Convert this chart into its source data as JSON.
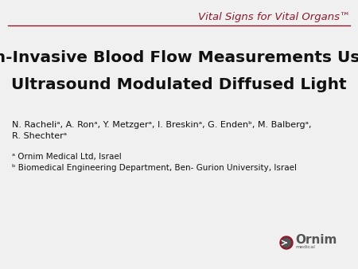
{
  "background_color": "#f0f0f0",
  "header_color": "#8b1a2a",
  "header_text": "Vital Signs for Vital Organs™",
  "header_fontsize": 9.5,
  "title_line1": "Non-Invasive Blood Flow Measurements Using",
  "title_line2": "Ultrasound Modulated Diffused Light",
  "title_fontsize": 14.5,
  "title_color": "#111111",
  "authors_line1": "N. Racheliᵃ, A. Ronᵃ, Y. Metzgerᵃ, I. Breskinᵃ, G. Endenᵇ, M. Balbergᵃ,",
  "authors_line2": "R. Shechterᵃ",
  "authors_fontsize": 8.0,
  "affil1": "ᵃ Ornim Medical Ltd, Israel",
  "affil2": "ᵇ Biomedical Engineering Department, Ben- Gurion University, Israel",
  "affil_fontsize": 7.5,
  "line_color": "#8b1a2a",
  "logo_text": "Ornim",
  "logo_sub": "medical",
  "logo_color": "#555555",
  "logo_accent": "#8b1a2a"
}
